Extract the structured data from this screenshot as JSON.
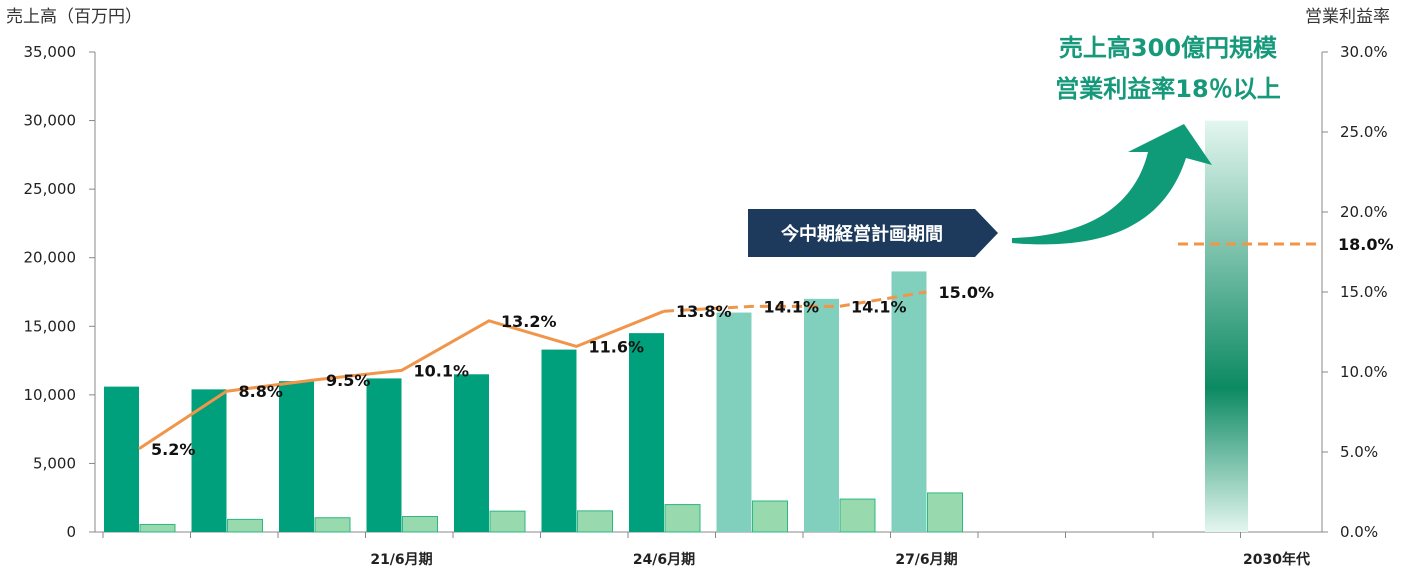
{
  "chart_data": {
    "type": "bar+line",
    "title": "",
    "y_left_label": "売上高（百万円）",
    "y_right_label": "営業利益率",
    "y_left_range": [
      0,
      35000
    ],
    "y_right_range": [
      0,
      30
    ],
    "y_left_ticks": [
      "0",
      "5,000",
      "10,000",
      "15,000",
      "20,000",
      "25,000",
      "30,000",
      "35,000"
    ],
    "y_right_ticks": [
      "0.0%",
      "5.0%",
      "10.0%",
      "15.0%",
      "20.0%",
      "25.0%",
      "30.0%"
    ],
    "category_labels": [
      {
        "index": 3,
        "text": "21/6月期"
      },
      {
        "index": 6,
        "text": "24/6月期"
      },
      {
        "index": 9,
        "text": "27/6月期"
      },
      {
        "index": 13,
        "text": "2030年代"
      }
    ],
    "sales": [
      10600,
      10400,
      11000,
      11200,
      11500,
      13300,
      14500,
      16000,
      17000,
      19000
    ],
    "operating_profit": [
      550,
      920,
      1040,
      1130,
      1520,
      1540,
      2000,
      2260,
      2400,
      2850
    ],
    "margin_labels": [
      "5.2%",
      "8.8%",
      "9.5%",
      "10.1%",
      "13.2%",
      "11.6%",
      "13.8%",
      "14.1%",
      "14.1%",
      "15.0%"
    ],
    "margin_values": [
      5.2,
      8.8,
      9.5,
      10.1,
      13.2,
      11.6,
      13.8,
      14.1,
      14.1,
      15.0
    ],
    "plan_start_index": 7,
    "target": {
      "sales": 30000,
      "margin": 18.0,
      "margin_label": "18.0%",
      "text_line1": "売上高300億円規模",
      "text_line2": "営業利益率18％以上"
    },
    "plan_banner": "今中期経営計画期間",
    "colors": {
      "sales_actual": "#00a07c",
      "sales_plan": "#80d0bd",
      "profit_bar": "#98d9ae",
      "margin_line": "#f0954a",
      "banner_bg": "#1d3a5c",
      "annotation_text": "#15997a",
      "arrow": "#0f9a78"
    }
  }
}
